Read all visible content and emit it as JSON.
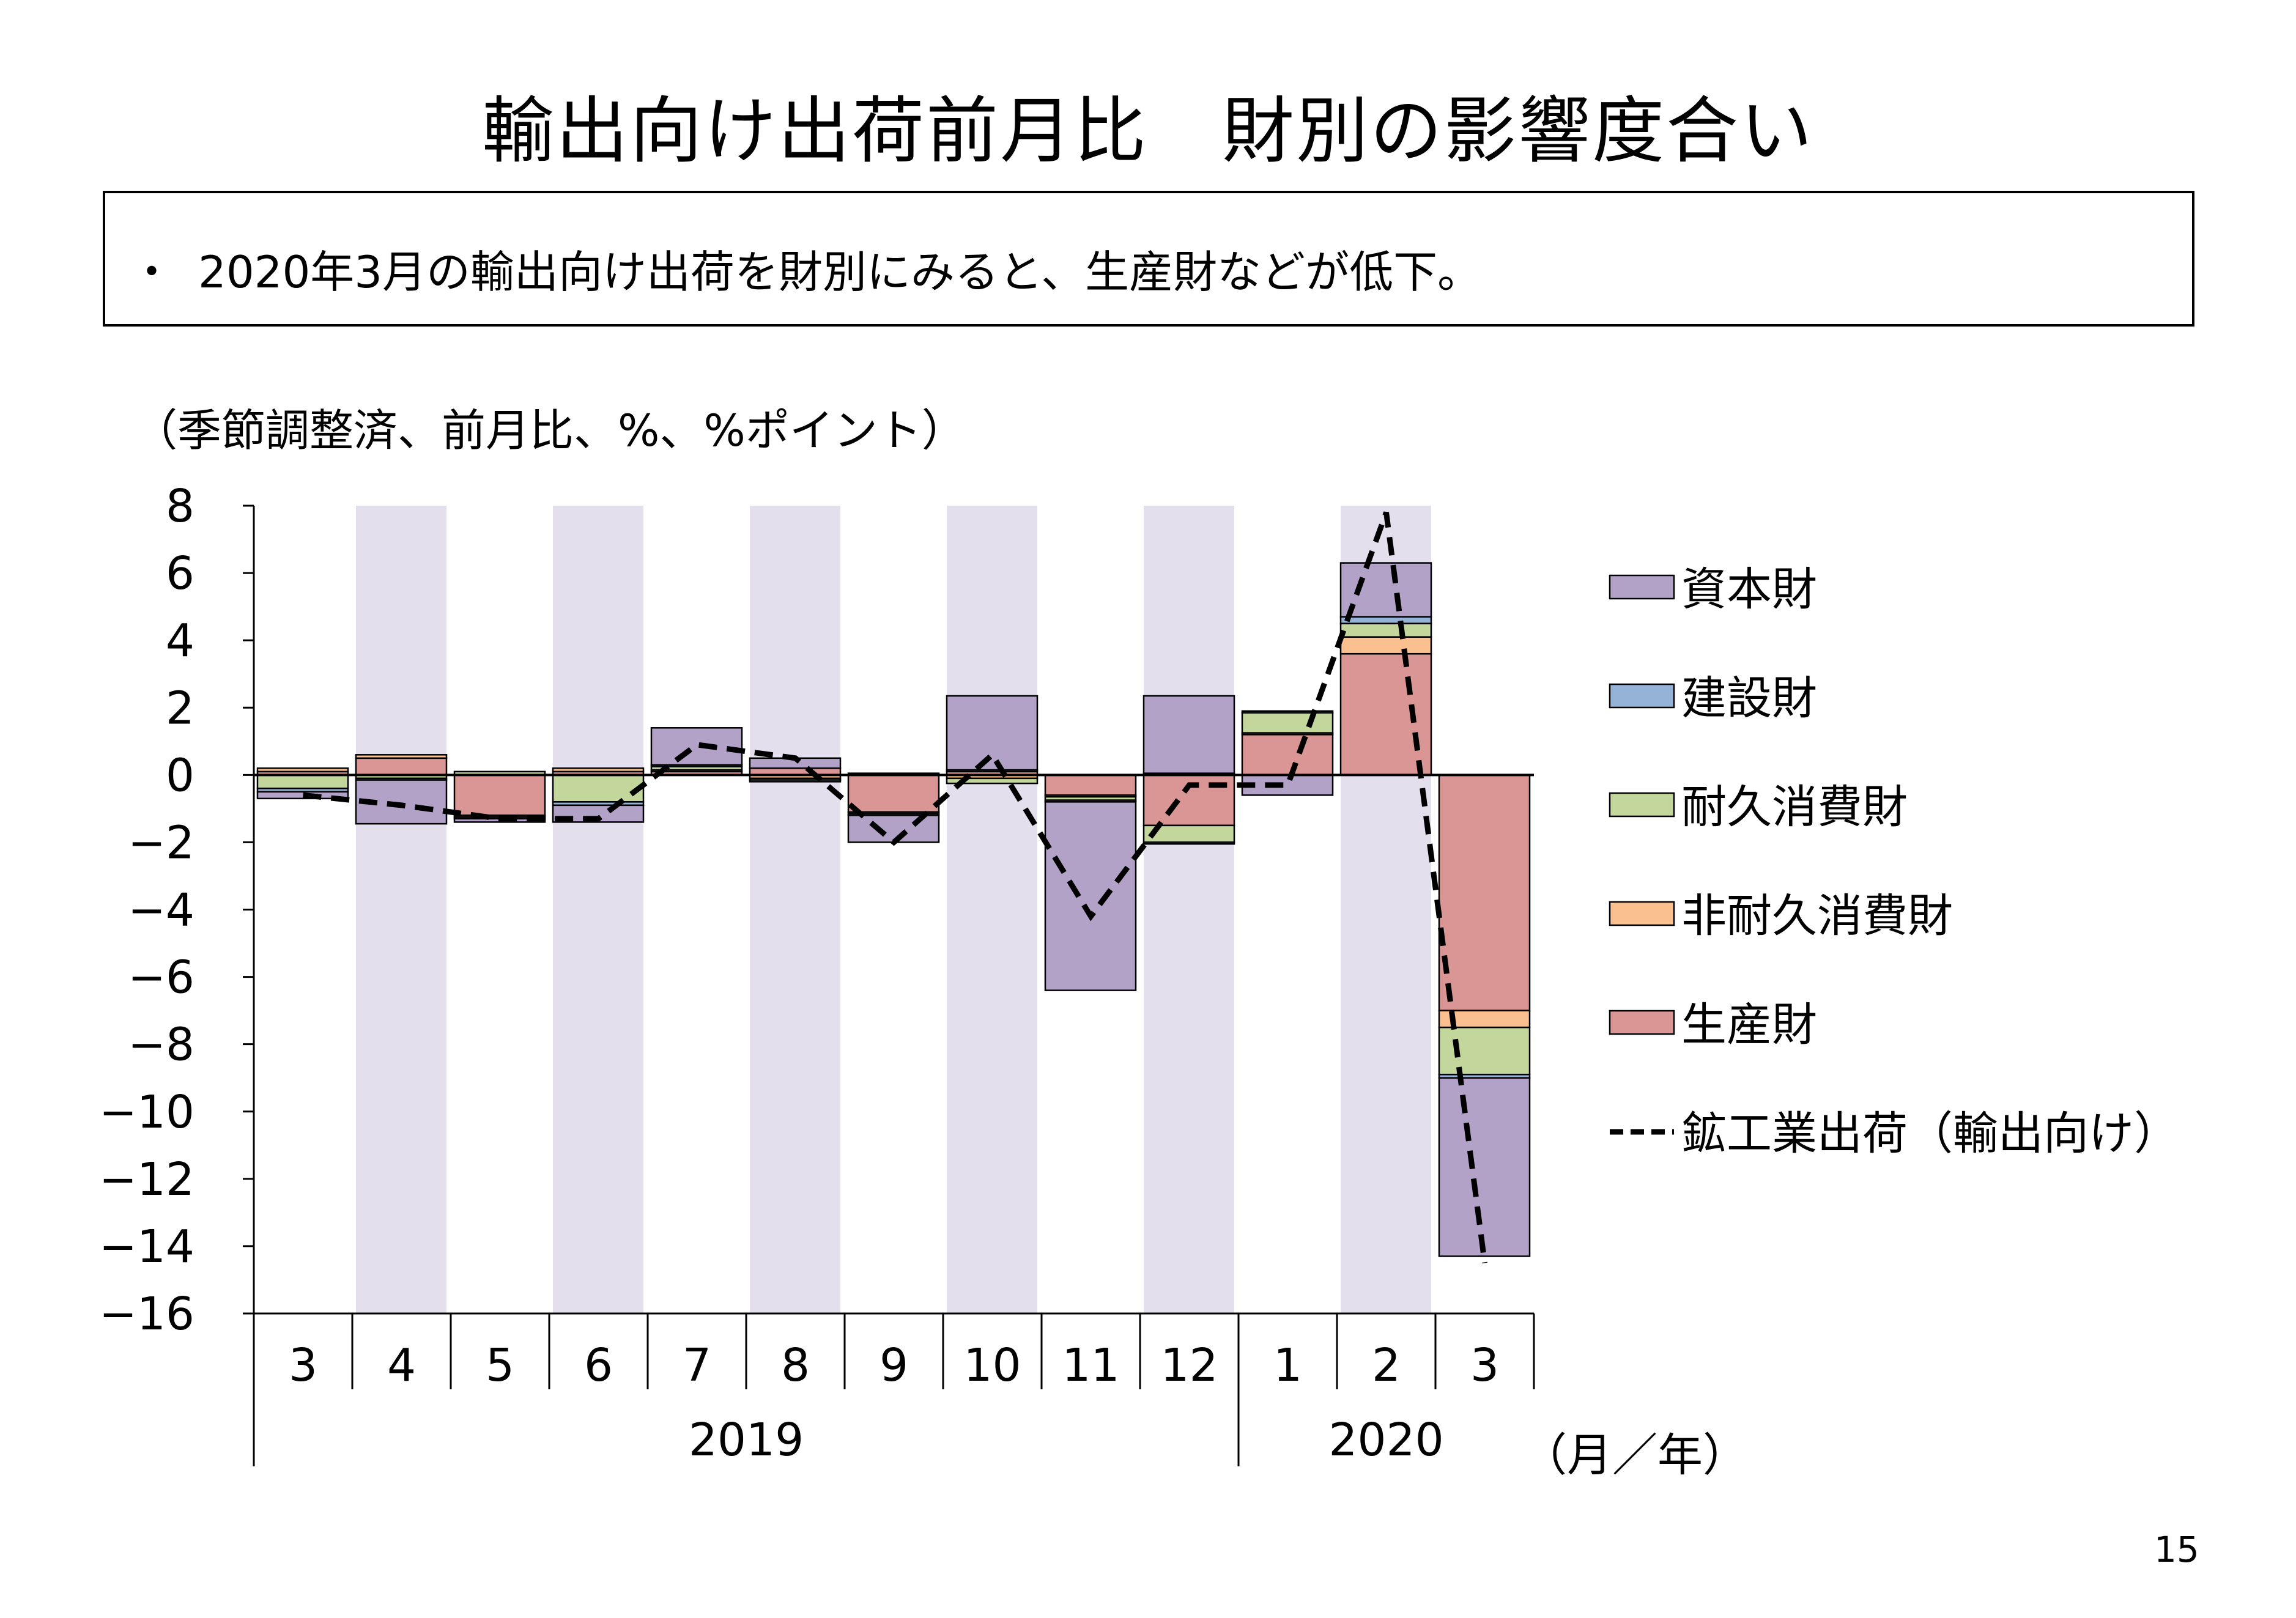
{
  "page": {
    "title": "輸出向け出荷前月比　財別の影響度合い",
    "bullet": "・",
    "summary": "2020年3月の輸出向け出荷を財別にみると、生産財などが低下。",
    "unit_note": "（季節調整済、前月比、%、%ポイント）",
    "axis_unit": "（月／年）",
    "page_number": "15"
  },
  "chart_data": {
    "type": "bar",
    "stacked": true,
    "categories": [
      "3",
      "4",
      "5",
      "6",
      "7",
      "8",
      "9",
      "10",
      "11",
      "12",
      "1",
      "2",
      "3"
    ],
    "year_groups": [
      {
        "label": "2019",
        "start": 0,
        "end": 9
      },
      {
        "label": "2020",
        "start": 10,
        "end": 12
      }
    ],
    "shaded_columns": [
      1,
      3,
      5,
      7,
      9,
      11
    ],
    "ylim": [
      -16,
      8
    ],
    "yticks": [
      "8",
      "6",
      "4",
      "2",
      "0",
      "−2",
      "−4",
      "−6",
      "−8",
      "−10",
      "−12",
      "−14",
      "−16"
    ],
    "ytick_values": [
      8,
      6,
      4,
      2,
      0,
      -2,
      -4,
      -6,
      -8,
      -10,
      -12,
      -14,
      -16
    ],
    "series": [
      {
        "name": "生産財",
        "color": "#da9694",
        "values": [
          0.1,
          0.5,
          -1.2,
          0.1,
          0.1,
          0.2,
          -1.1,
          0.1,
          -0.6,
          -1.5,
          1.2,
          3.6,
          -7.0
        ]
      },
      {
        "name": "非耐久消費財",
        "color": "#fac090",
        "values": [
          0.1,
          0.1,
          -0.05,
          0.1,
          0.05,
          -0.1,
          0.05,
          -0.1,
          -0.05,
          0.05,
          0.05,
          0.5,
          -0.5
        ]
      },
      {
        "name": "耐久消費財",
        "color": "#c3d69b",
        "values": [
          -0.4,
          -0.1,
          0.1,
          -0.8,
          0.1,
          -0.05,
          -0.05,
          -0.15,
          -0.1,
          -0.5,
          0.6,
          0.4,
          -1.4
        ]
      },
      {
        "name": "建設財",
        "color": "#95b3d7",
        "values": [
          -0.1,
          -0.05,
          -0.05,
          -0.1,
          0.05,
          -0.05,
          -0.05,
          0.05,
          -0.05,
          -0.05,
          0.05,
          0.2,
          -0.1
        ]
      },
      {
        "name": "資本財",
        "color": "#b2a2c7",
        "values": [
          -0.2,
          -1.3,
          -0.1,
          -0.5,
          1.1,
          0.3,
          -0.8,
          2.2,
          -5.6,
          2.3,
          -0.6,
          1.6,
          -5.3
        ]
      }
    ],
    "line": {
      "name": "鉱工業出荷（輸出向け）",
      "style": "dashed",
      "color": "#000000",
      "values": [
        -0.6,
        -0.9,
        -1.3,
        -1.3,
        0.9,
        0.5,
        -2.0,
        0.6,
        -4.2,
        -0.3,
        -0.3,
        7.8,
        -14.5
      ]
    },
    "legend": {
      "placement": "right",
      "entries": [
        "資本財",
        "建設財",
        "耐久消費財",
        "非耐久消費財",
        "生産財",
        "鉱工業出荷（輸出向け）"
      ],
      "colors": [
        "#b2a2c7",
        "#95b3d7",
        "#c3d69b",
        "#fac090",
        "#da9694",
        "#000000"
      ]
    },
    "shade_color": "#e4dfec"
  }
}
